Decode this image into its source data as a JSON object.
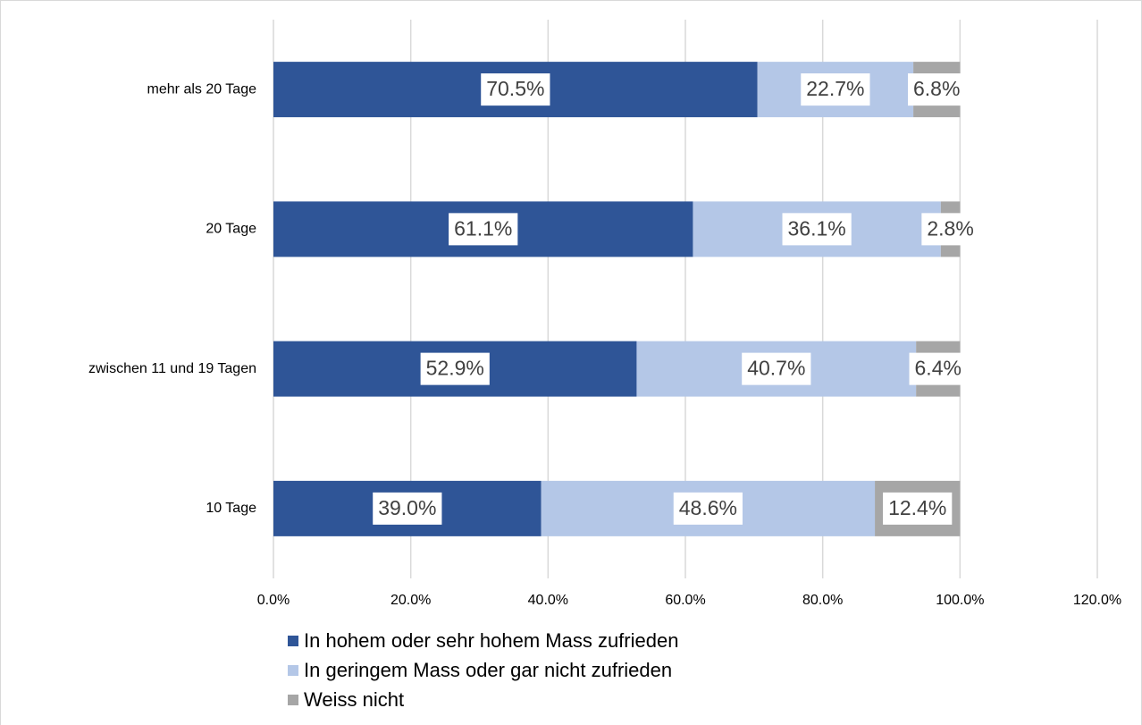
{
  "chart_data": {
    "type": "stacked-bar-horizontal",
    "categories": [
      "mehr als 20 Tage",
      "20 Tage",
      "zwischen 11 und 19 Tagen",
      "10 Tage"
    ],
    "series": [
      {
        "name": "In hohem oder sehr hohem Mass zufrieden",
        "color": "#2f5597",
        "values": [
          70.5,
          61.1,
          52.9,
          39.0
        ],
        "value_labels": [
          "70.5%",
          "61.1%",
          "52.9%",
          "39.0%"
        ]
      },
      {
        "name": "In geringem Mass oder gar nicht zufrieden",
        "color": "#b4c7e7",
        "values": [
          22.7,
          36.1,
          40.7,
          48.6
        ],
        "value_labels": [
          "22.7%",
          "36.1%",
          "40.7%",
          "48.6%"
        ]
      },
      {
        "name": "Weiss nicht",
        "color": "#a6a6a6",
        "values": [
          6.8,
          2.8,
          6.4,
          12.4
        ],
        "value_labels": [
          "6.8%",
          "2.8%",
          "6.4%",
          "12.4%"
        ]
      }
    ],
    "xlim": [
      0,
      120
    ],
    "xticks": [
      {
        "value": 0,
        "label": "0.0%"
      },
      {
        "value": 20,
        "label": "20.0%"
      },
      {
        "value": 40,
        "label": "40.0%"
      },
      {
        "value": 60,
        "label": "60.0%"
      },
      {
        "value": 80,
        "label": "80.0%"
      },
      {
        "value": 100,
        "label": "100.0%"
      },
      {
        "value": 120,
        "label": "120.0%"
      }
    ],
    "grid": true,
    "legend": "bottom"
  }
}
